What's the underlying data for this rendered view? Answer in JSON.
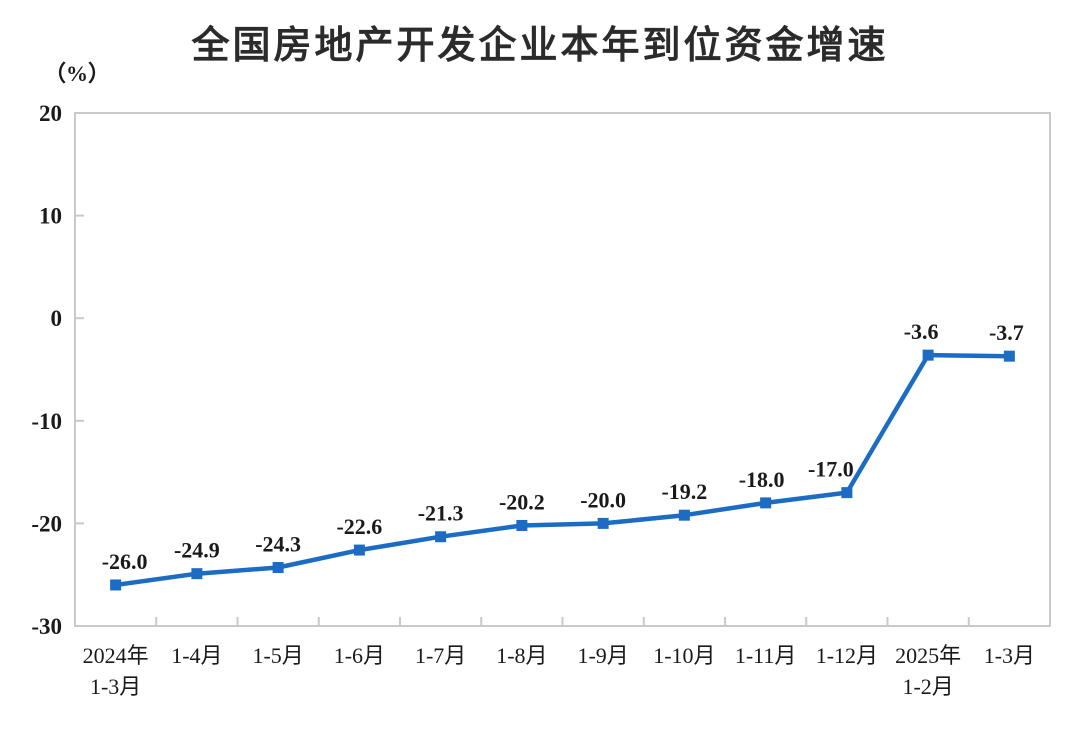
{
  "chart": {
    "title": "全国房地产开发企业本年到位资金增速",
    "unit_label": "（%）"
  },
  "chart_data": {
    "type": "line",
    "title": "全国房地产开发企业本年到位资金增速",
    "unit": "（%）",
    "categories": [
      [
        "2024年",
        "1-3月"
      ],
      [
        "1-4月"
      ],
      [
        "1-5月"
      ],
      [
        "1-6月"
      ],
      [
        "1-7月"
      ],
      [
        "1-8月"
      ],
      [
        "1-9月"
      ],
      [
        "1-10月"
      ],
      [
        "1-11月"
      ],
      [
        "1-12月"
      ],
      [
        "2025年",
        "1-2月"
      ],
      [
        "1-3月"
      ]
    ],
    "values": [
      -26.0,
      -24.9,
      -24.3,
      -22.6,
      -21.3,
      -20.2,
      -20.0,
      -19.2,
      -18.0,
      -17.0,
      -3.6,
      -3.7
    ],
    "data_labels": [
      "-26.0",
      "-24.9",
      "-24.3",
      "-22.6",
      "-21.3",
      "-20.2",
      "-20.0",
      "-19.2",
      "-18.0",
      "-17.0",
      "-3.6",
      "-3.7"
    ],
    "label_x_offsets": [
      9,
      0,
      0,
      0,
      0,
      0,
      0,
      0,
      -4,
      -16,
      -7,
      -3
    ],
    "y_ticks": [
      20,
      10,
      0,
      -10,
      -20,
      -30
    ],
    "ylim": [
      -30,
      20
    ],
    "xlabel": "",
    "ylabel": "（%）",
    "grid": false,
    "legend": "none",
    "marker": "square",
    "series": [
      {
        "name": "本年到位资金增速",
        "values": [
          -26.0,
          -24.9,
          -24.3,
          -22.6,
          -21.3,
          -20.2,
          -20.0,
          -19.2,
          -18.0,
          -17.0,
          -3.6,
          -3.7
        ]
      }
    ],
    "colors": {
      "line": "#1d6cc4",
      "marker": "#1d6cc4",
      "axis": "#c9c9c9",
      "text": "#1a1a1a",
      "title": "#2b2b2b",
      "background": "#ffffff"
    }
  }
}
